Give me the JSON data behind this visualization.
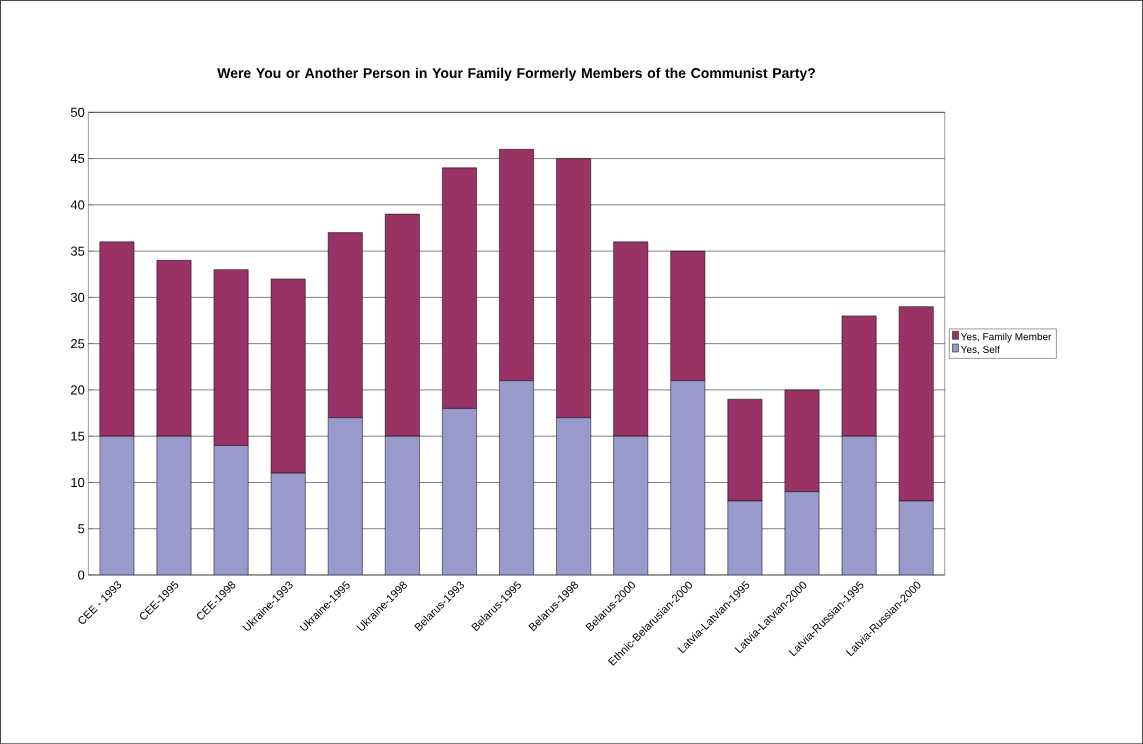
{
  "chart_data": {
    "type": "bar",
    "stacked": true,
    "title": "Were You or Another Person in Your Family Formerly Members of the Communist Party?",
    "categories": [
      "CEE - 1993",
      "CEE-1995",
      "CEE-1998",
      "Ukraine-1993",
      "Ukraine-1995",
      "Ukraine-1998",
      "Belarus-1993",
      "Belarus-1995",
      "Belarus-1998",
      "Belarus-2000",
      "Ethnic-Belarusian-2000",
      "Latvia-Latvian-1995",
      "Latvia-Latvian-2000",
      "Latvia-Russian-1995",
      "Latvia-Russian-2000"
    ],
    "series": [
      {
        "name": "Yes, Self",
        "color": "#9999cc",
        "values": [
          15,
          15,
          14,
          11,
          17,
          15,
          18,
          21,
          17,
          15,
          21,
          8,
          9,
          15,
          8
        ]
      },
      {
        "name": "Yes, Family Member",
        "color": "#993366",
        "values": [
          21,
          19,
          19,
          21,
          20,
          24,
          26,
          25,
          28,
          21,
          14,
          11,
          11,
          13,
          21
        ]
      }
    ],
    "ylim": [
      0,
      50
    ],
    "yticks": [
      0,
      5,
      10,
      15,
      20,
      25,
      30,
      35,
      40,
      45,
      50
    ],
    "grid": "y",
    "legend": "right"
  }
}
